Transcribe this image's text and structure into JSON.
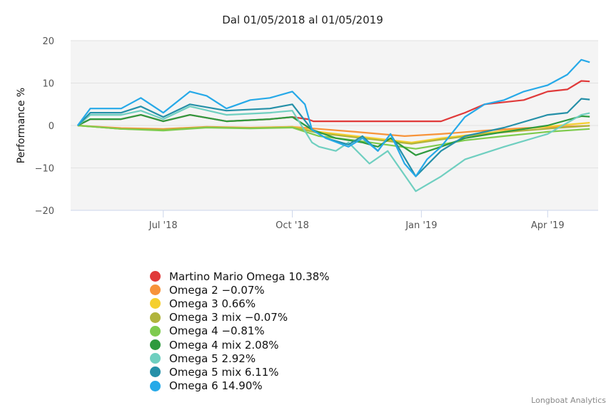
{
  "chart_data": {
    "type": "line",
    "title": "Dal 01/05/2018 al 01/05/2019",
    "xlabel": "",
    "ylabel": "Performance %",
    "xlim": [
      "2018-04-26",
      "2019-05-07"
    ],
    "ylim": [
      -20,
      20
    ],
    "y_ticks": [
      20,
      10,
      0,
      -10,
      -20
    ],
    "y_tick_labels": [
      "20",
      "10",
      "0",
      "−10",
      "−20"
    ],
    "x_ticks": [
      "2018-07-01",
      "2018-10-01",
      "2019-01-01",
      "2019-04-01"
    ],
    "x_tick_labels": [
      "Jul '18",
      "Oct '18",
      "Jan '19",
      "Apr '19"
    ],
    "grid": true,
    "legend_position": "bottom-left",
    "series": [
      {
        "name": "Martino Mario Omega 10.38%",
        "color": "#e03a3a",
        "x": [
          "2018-05-01",
          "2018-05-10",
          "2018-06-01",
          "2018-06-15",
          "2018-07-01",
          "2018-07-20",
          "2018-08-15",
          "2018-09-15",
          "2018-10-01",
          "2018-10-12",
          "2018-10-16",
          "2019-01-15",
          "2019-02-01",
          "2019-02-15",
          "2019-03-15",
          "2019-04-01",
          "2019-04-15",
          "2019-04-25",
          "2019-05-01"
        ],
        "y": [
          0,
          1.5,
          1.5,
          2.5,
          1,
          2.5,
          1,
          1.5,
          2,
          1.5,
          1,
          1,
          3,
          5,
          6,
          8,
          8.5,
          10.5,
          10.38
        ]
      },
      {
        "name": "Omega 2 -0.07%",
        "color": "#f7933a",
        "x": [
          "2018-05-01",
          "2018-06-01",
          "2018-07-01",
          "2018-08-01",
          "2018-09-01",
          "2018-10-01",
          "2018-10-20",
          "2018-11-15",
          "2018-12-20",
          "2019-01-15",
          "2019-02-15",
          "2019-03-15",
          "2019-04-15",
          "2019-05-01"
        ],
        "y": [
          0,
          -0.6,
          -0.8,
          -0.3,
          -0.5,
          -0.3,
          -0.8,
          -1.5,
          -2.5,
          -2,
          -1.2,
          -0.6,
          -0.2,
          -0.07
        ]
      },
      {
        "name": "Omega 3 0.66%",
        "color": "#f5cf2d",
        "x": [
          "2018-05-01",
          "2018-06-01",
          "2018-07-01",
          "2018-08-01",
          "2018-09-01",
          "2018-10-01",
          "2018-10-20",
          "2018-11-15",
          "2018-12-25",
          "2019-01-15",
          "2019-02-15",
          "2019-03-15",
          "2019-04-15",
          "2019-05-01"
        ],
        "y": [
          0,
          -0.8,
          -1,
          -0.4,
          -0.6,
          -0.3,
          -1.5,
          -2.5,
          -4,
          -3,
          -1.8,
          -0.8,
          0.2,
          0.66
        ]
      },
      {
        "name": "Omega 3 mix -0.07%",
        "color": "#b0b43c",
        "x": [
          "2018-05-01",
          "2018-06-01",
          "2018-07-01",
          "2018-08-01",
          "2018-09-01",
          "2018-10-01",
          "2018-10-20",
          "2018-11-15",
          "2018-12-25",
          "2019-01-15",
          "2019-02-15",
          "2019-03-15",
          "2019-04-15",
          "2019-05-01"
        ],
        "y": [
          0,
          -0.8,
          -1,
          -0.4,
          -0.6,
          -0.4,
          -1.8,
          -2.8,
          -4.3,
          -3.3,
          -2,
          -1.2,
          -0.4,
          -0.07
        ]
      },
      {
        "name": "Omega 4 -0.81%",
        "color": "#7ecb4e",
        "x": [
          "2018-05-01",
          "2018-06-01",
          "2018-07-01",
          "2018-08-01",
          "2018-09-01",
          "2018-10-01",
          "2018-10-20",
          "2018-11-15",
          "2018-12-28",
          "2019-01-15",
          "2019-02-01",
          "2019-03-01",
          "2019-04-01",
          "2019-05-01"
        ],
        "y": [
          0,
          -0.8,
          -1.2,
          -0.5,
          -0.7,
          -0.5,
          -2.5,
          -3.5,
          -5.5,
          -4.5,
          -3.5,
          -2.5,
          -1.5,
          -0.81
        ]
      },
      {
        "name": "Omega 4 mix 2.08%",
        "color": "#2e9a3e",
        "x": [
          "2018-05-01",
          "2018-05-10",
          "2018-06-01",
          "2018-06-15",
          "2018-07-01",
          "2018-07-20",
          "2018-08-15",
          "2018-09-15",
          "2018-10-01",
          "2018-10-15",
          "2018-11-01",
          "2018-11-20",
          "2018-12-01",
          "2018-12-10",
          "2018-12-28",
          "2019-01-15",
          "2019-02-01",
          "2019-03-01",
          "2019-04-01",
          "2019-04-25",
          "2019-05-01"
        ],
        "y": [
          0,
          1.5,
          1.5,
          2.5,
          1,
          2.5,
          1,
          1.5,
          2,
          -1,
          -3,
          -4,
          -5,
          -3,
          -7,
          -5,
          -3,
          -1.5,
          0,
          2.2,
          2.08
        ]
      },
      {
        "name": "Omega 5 2.92%",
        "color": "#6fcfc0",
        "x": [
          "2018-05-01",
          "2018-05-10",
          "2018-06-01",
          "2018-06-15",
          "2018-07-01",
          "2018-07-20",
          "2018-08-15",
          "2018-09-15",
          "2018-10-01",
          "2018-10-15",
          "2018-10-20",
          "2018-11-01",
          "2018-11-10",
          "2018-11-25",
          "2018-12-08",
          "2018-12-28",
          "2019-01-15",
          "2019-02-01",
          "2019-03-01",
          "2019-04-01",
          "2019-04-25",
          "2019-05-01"
        ],
        "y": [
          0,
          2.5,
          2.5,
          3.5,
          1.5,
          4.5,
          2.5,
          3,
          3.5,
          -4,
          -5,
          -6,
          -4,
          -9,
          -6,
          -15.5,
          -12,
          -8,
          -5,
          -2,
          2.5,
          2.92
        ]
      },
      {
        "name": "Omega 5 mix 6.11%",
        "color": "#2590a8",
        "x": [
          "2018-05-01",
          "2018-05-10",
          "2018-06-01",
          "2018-06-15",
          "2018-07-01",
          "2018-07-20",
          "2018-08-15",
          "2018-09-15",
          "2018-10-01",
          "2018-10-15",
          "2018-10-25",
          "2018-11-10",
          "2018-11-20",
          "2018-12-01",
          "2018-12-10",
          "2018-12-28",
          "2019-01-15",
          "2019-02-01",
          "2019-03-01",
          "2019-04-01",
          "2019-04-15",
          "2019-04-25",
          "2019-05-01"
        ],
        "y": [
          0,
          3,
          3,
          4.5,
          2,
          5,
          3.5,
          4,
          5,
          -1,
          -3,
          -4.5,
          -2.5,
          -6,
          -2,
          -12,
          -6,
          -2.5,
          -0.5,
          2.5,
          3,
          6.3,
          6.11
        ]
      },
      {
        "name": "Omega 6 14.90%",
        "color": "#26a9e8",
        "x": [
          "2018-05-01",
          "2018-05-10",
          "2018-06-01",
          "2018-06-15",
          "2018-07-01",
          "2018-07-20",
          "2018-08-01",
          "2018-08-15",
          "2018-09-01",
          "2018-09-15",
          "2018-10-01",
          "2018-10-10",
          "2018-10-15",
          "2018-10-25",
          "2018-11-10",
          "2018-11-20",
          "2018-12-01",
          "2018-12-10",
          "2018-12-20",
          "2018-12-28",
          "2019-01-05",
          "2019-01-15",
          "2019-02-01",
          "2019-02-15",
          "2019-03-01",
          "2019-03-15",
          "2019-04-01",
          "2019-04-15",
          "2019-04-25",
          "2019-05-01"
        ],
        "y": [
          0,
          4,
          4,
          6.5,
          3,
          8,
          7,
          4,
          6,
          6.5,
          8,
          5,
          -1,
          -3,
          -5,
          -3,
          -6,
          -2,
          -9,
          -12,
          -8,
          -5,
          2,
          5,
          6,
          8,
          9.5,
          12,
          15.5,
          14.9
        ]
      }
    ]
  },
  "footer": {
    "credit": "Longboat Analytics"
  }
}
